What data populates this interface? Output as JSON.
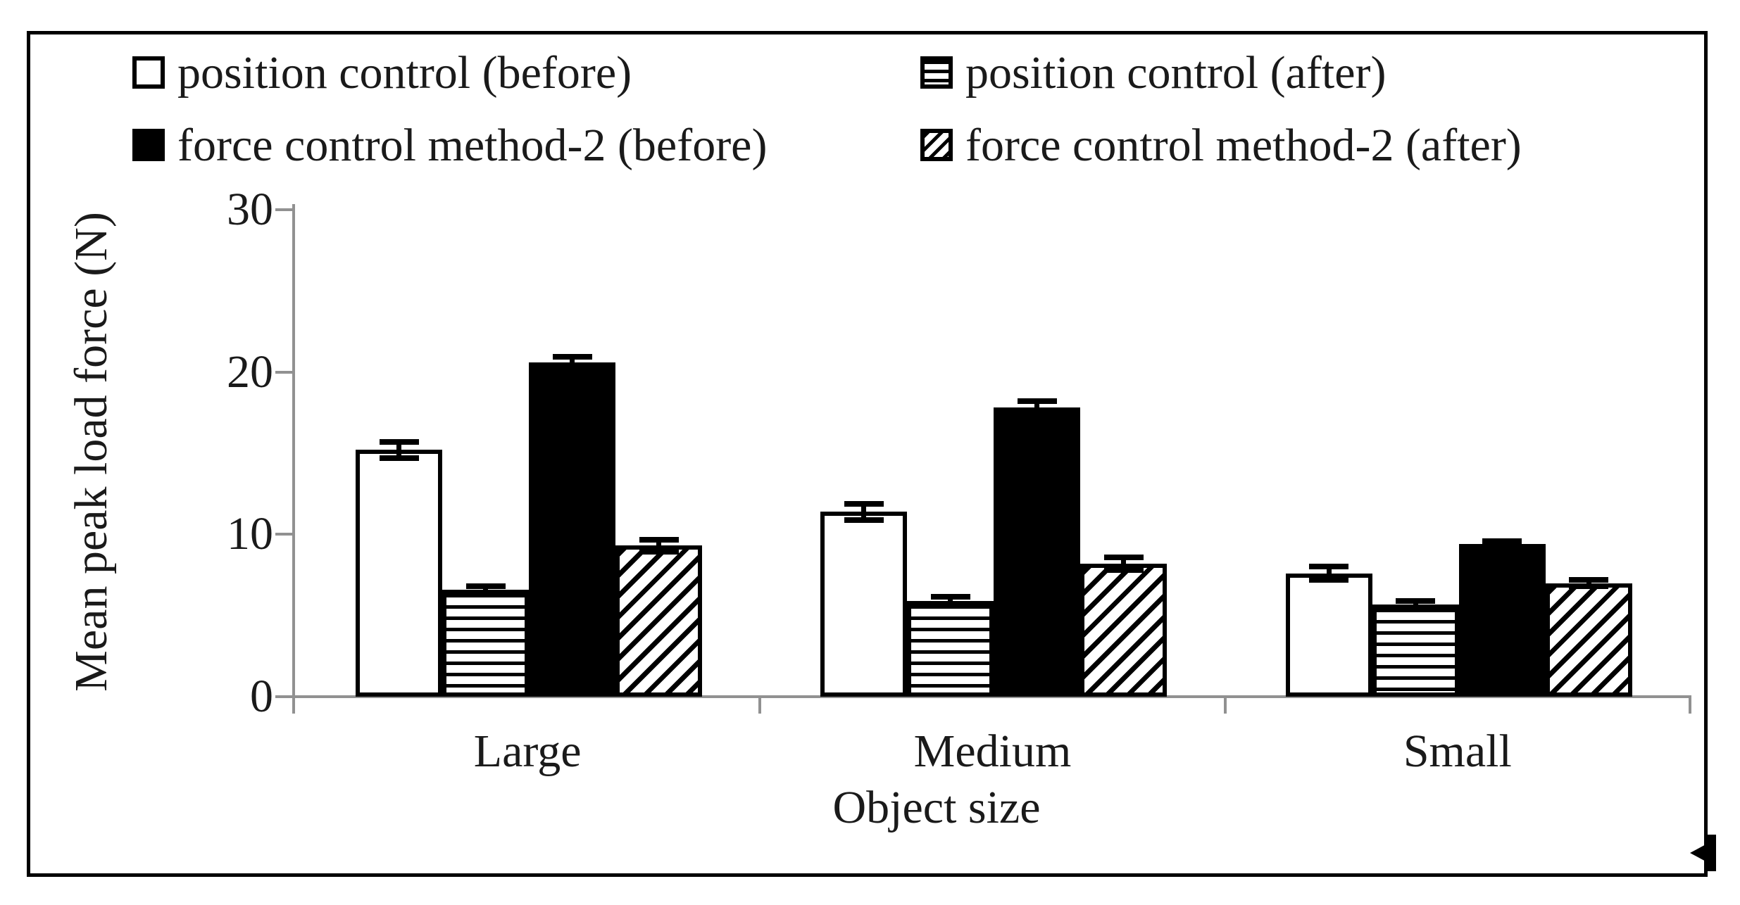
{
  "colors": {
    "ink": "#1a1a1a",
    "bar_outline": "#000000",
    "bar_fill_solid": "#000000",
    "bar_fill_open": "#ffffff",
    "axis_gray": "#919191",
    "background": "#ffffff"
  },
  "legend": {
    "items": [
      {
        "marker": "open-square-icon",
        "pattern": "white"
      },
      {
        "marker": "hlines-square-icon",
        "pattern": "hlines"
      },
      {
        "marker": "solid-square-icon",
        "pattern": "black"
      },
      {
        "marker": "hatch-square-icon",
        "pattern": "hatch"
      }
    ]
  },
  "chart_data": {
    "type": "bar",
    "title": "",
    "xlabel": "Object size",
    "ylabel": "Mean peak load force (N)",
    "categories": [
      "Large",
      "Medium",
      "Small"
    ],
    "series": [
      {
        "name": "position control (before)",
        "pattern": "white",
        "values": [
          15.2,
          11.4,
          7.6
        ],
        "errors": [
          0.5,
          0.5,
          0.4
        ]
      },
      {
        "name": "position control (after)",
        "pattern": "hlines",
        "values": [
          6.6,
          5.9,
          5.7
        ],
        "errors": [
          0.2,
          0.25,
          0.2
        ]
      },
      {
        "name": "force control method-2 (before)",
        "pattern": "black",
        "values": [
          20.6,
          17.8,
          9.4
        ],
        "errors": [
          0.35,
          0.4,
          0.2
        ]
      },
      {
        "name": "force control method-2 (after)",
        "pattern": "hatch",
        "values": [
          9.3,
          8.2,
          7.0
        ],
        "errors": [
          0.35,
          0.4,
          0.2
        ]
      }
    ],
    "ylim": [
      0,
      30
    ],
    "yticks": [
      0,
      10,
      20,
      30
    ],
    "grid": false,
    "legend_position": "top-inside",
    "error_bars": true
  }
}
